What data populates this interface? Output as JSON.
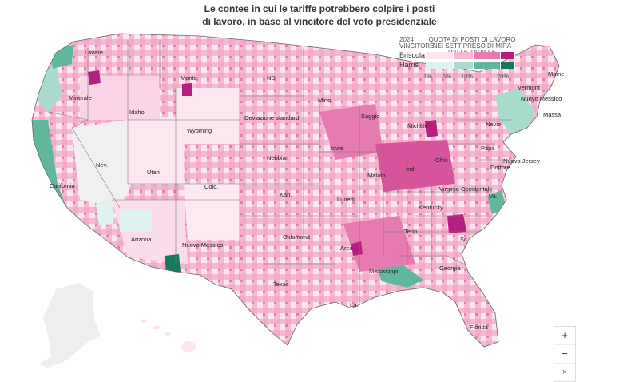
{
  "title": {
    "line1": "Le contee in cui le tariffe potrebbero colpire i posti",
    "line2": "di lavoro, in base al vincitore del voto presidenziale"
  },
  "legend": {
    "left_header": "2024 VINCITORE",
    "right_header": "QUOTA DI POSTI DI LAVORO NEI SETT PRESO DI MIRA DALLE TARIFFE",
    "rows": [
      {
        "label": "Briscola",
        "colors": [
          "#fce6ef",
          "#f5b9d3",
          "#e57bb0",
          "#b51f7f"
        ]
      },
      {
        "label": "Harris",
        "colors": [
          "#dff3ee",
          "#a9dccd",
          "#5fb79c",
          "#157a5a"
        ]
      }
    ],
    "ticks": [
      "1%",
      "5%",
      "10%",
      "20%"
    ]
  },
  "states": [
    "Lavare",
    "Monte",
    "ND",
    "Minerale",
    "Idaho",
    "Wyoming",
    "Deviazione standard",
    "Mino",
    "Saggio",
    "Michele",
    "Nevio",
    "Maine",
    "Vermont",
    "Nuovo Messico",
    "Massa",
    "Nev.",
    "Utah",
    "Nebbia.",
    "Iowa",
    "Ind.",
    "Ohio",
    "Papà",
    "Nuova Jersey",
    "Dottore",
    "California",
    "Colo.",
    "Kan.",
    "Malato.",
    "Virginia Occidentale",
    "Va.",
    "Lunedì",
    "Kentucky",
    "Tenn.",
    "Arizona",
    "Nuovo Messico",
    "Oklahoma",
    "Arca",
    "Sc.",
    "Mississippi",
    "Georgia",
    "Texas",
    "La.",
    "Florida"
  ],
  "zoom": {
    "plus": "+",
    "minus": "−",
    "reset": "×"
  },
  "colors": {
    "trump_light": "#fce6ef",
    "trump_mid": "#f5b9d3",
    "trump_strong": "#e57bb0",
    "trump_dark": "#b51f7f",
    "harris_light": "#dff3ee",
    "harris_mid": "#a9dccd",
    "harris_strong": "#5fb79c",
    "harris_dark": "#157a5a",
    "no_data": "#eeeeee"
  }
}
